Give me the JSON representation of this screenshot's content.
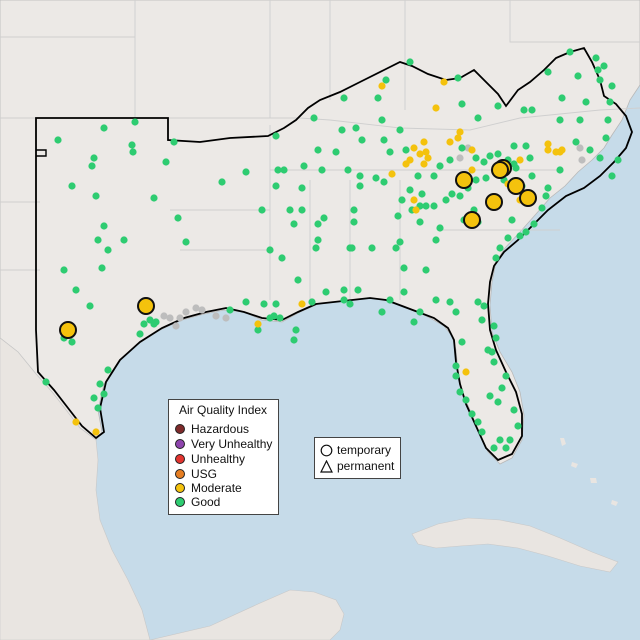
{
  "legend": {
    "title": "Air Quality Index",
    "levels": [
      {
        "label": "Hazardous",
        "color": "#7e2a2a"
      },
      {
        "label": "Very Unhealthy",
        "color": "#8e44ad"
      },
      {
        "label": "Unhealthy",
        "color": "#e3342f"
      },
      {
        "label": "USG",
        "color": "#e67e22"
      },
      {
        "label": "Moderate",
        "color": "#f4c20d"
      },
      {
        "label": "Good",
        "color": "#2ecc71"
      }
    ]
  },
  "site_types": [
    {
      "label": "temporary",
      "icon": "circle-icon"
    },
    {
      "label": "permanent",
      "icon": "triangle-icon"
    }
  ],
  "colors": {
    "water": "#c6dbe9",
    "land": "#ece9e6",
    "border": "#cfcfcf",
    "region_outline": "#000000",
    "no_data": "#bdbdbd"
  }
}
